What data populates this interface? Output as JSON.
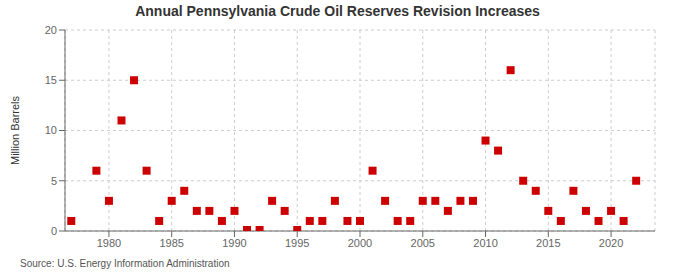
{
  "chart_data": {
    "type": "scatter",
    "title": "Annual Pennsylvania Crude Oil Reserves Revision Increases",
    "ylabel": "Million Barrels",
    "source": "Source: U.S. Energy Information Administration",
    "x": [
      1977,
      1979,
      1980,
      1981,
      1982,
      1983,
      1984,
      1985,
      1986,
      1987,
      1988,
      1989,
      1990,
      1991,
      1992,
      1993,
      1994,
      1995,
      1996,
      1997,
      1998,
      1999,
      2000,
      2001,
      2002,
      2003,
      2004,
      2005,
      2006,
      2007,
      2008,
      2009,
      2010,
      2011,
      2012,
      2013,
      2014,
      2015,
      2016,
      2017,
      2018,
      2019,
      2020,
      2021,
      2022
    ],
    "values": [
      1,
      6,
      3,
      11,
      15,
      6,
      1,
      3,
      4,
      2,
      2,
      1,
      2,
      0.1,
      0.1,
      3,
      2,
      0.1,
      1,
      1,
      3,
      1,
      1,
      6,
      3,
      1,
      1,
      3,
      3,
      2,
      3,
      3,
      9,
      8,
      16,
      5,
      4,
      2,
      1,
      4,
      2,
      1,
      2,
      1,
      5
    ],
    "color": "#cc0000",
    "marker": "square",
    "xlim": [
      1976.5,
      2023.5
    ],
    "xticks": [
      1980,
      1985,
      1990,
      1995,
      2000,
      2005,
      2010,
      2015,
      2020
    ],
    "ylim": [
      0,
      20
    ],
    "yticks": [
      0,
      5,
      10,
      15,
      20
    ],
    "grid": true
  }
}
